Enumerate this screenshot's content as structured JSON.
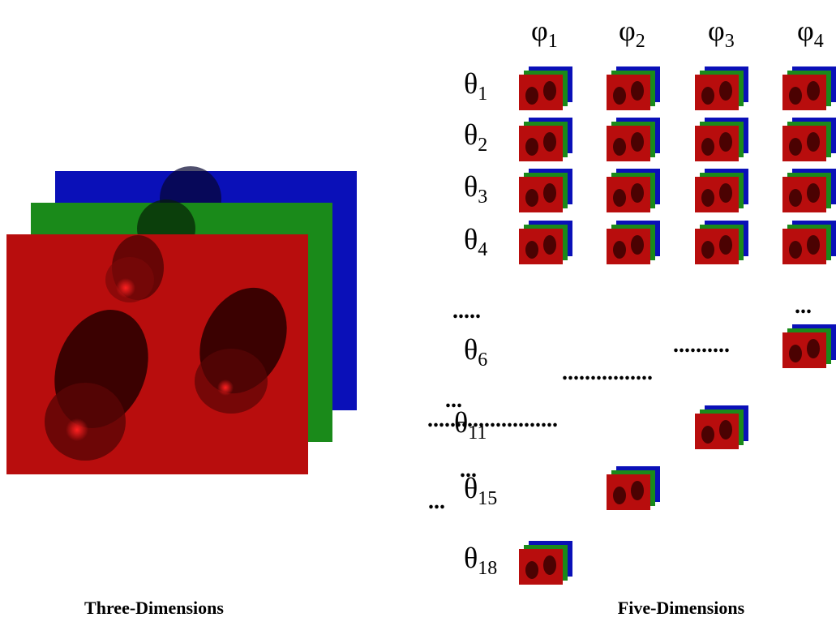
{
  "columns": [
    {
      "symbol": "φ",
      "index": "1"
    },
    {
      "symbol": "φ",
      "index": "2"
    },
    {
      "symbol": "φ",
      "index": "3"
    },
    {
      "symbol": "φ",
      "index": "4"
    }
  ],
  "rows": [
    {
      "symbol": "θ",
      "index": "1"
    },
    {
      "symbol": "θ",
      "index": "2"
    },
    {
      "symbol": "θ",
      "index": "3"
    },
    {
      "symbol": "θ",
      "index": "4"
    },
    {
      "symbol": "θ",
      "index": "6"
    },
    {
      "symbol": "θ",
      "index": "11"
    },
    {
      "symbol": "θ",
      "index": "15"
    },
    {
      "symbol": "θ",
      "index": "18"
    }
  ],
  "ellipses": [
    ".....",
    "...",
    "..........",
    "................",
    "...",
    ".......................",
    "...",
    "..."
  ],
  "captions": {
    "left": "Three-Dimensions",
    "right": "Five-Dimensions"
  }
}
